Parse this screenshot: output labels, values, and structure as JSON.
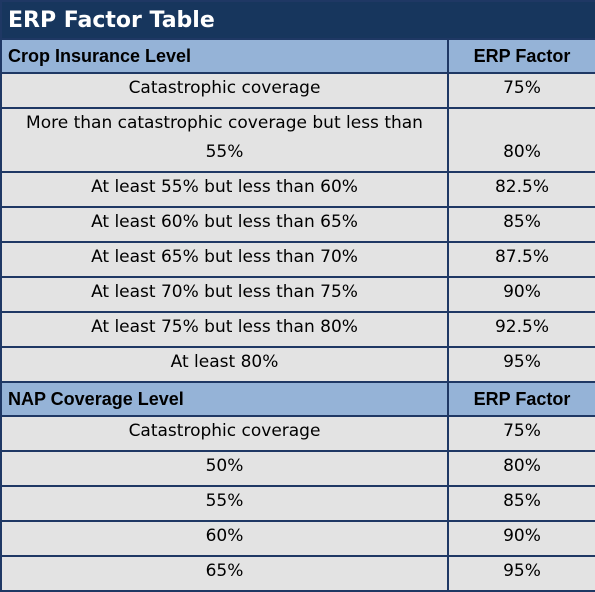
{
  "title": "ERP Factor Table",
  "sections": [
    {
      "header": [
        "Crop Insurance Level",
        "ERP Factor"
      ],
      "rows": [
        [
          "Catastrophic coverage",
          "75%"
        ],
        [
          "More than catastrophic coverage but less than 55%",
          "80%"
        ],
        [
          "At least 55% but less than 60%",
          "82.5%"
        ],
        [
          "At least 60% but less than 65%",
          "85%"
        ],
        [
          "At least 65% but less than 70%",
          "87.5%"
        ],
        [
          "At least 70% but less than 75%",
          "90%"
        ],
        [
          "At least 75% but less than 80%",
          "92.5%"
        ],
        [
          "At least 80%",
          "95%"
        ]
      ]
    },
    {
      "header": [
        "NAP Coverage Level",
        "ERP Factor"
      ],
      "rows": [
        [
          "Catastrophic coverage",
          "75%"
        ],
        [
          "50%",
          "80%"
        ],
        [
          "55%",
          "85%"
        ],
        [
          "60%",
          "90%"
        ],
        [
          "65%",
          "95%"
        ]
      ]
    }
  ]
}
